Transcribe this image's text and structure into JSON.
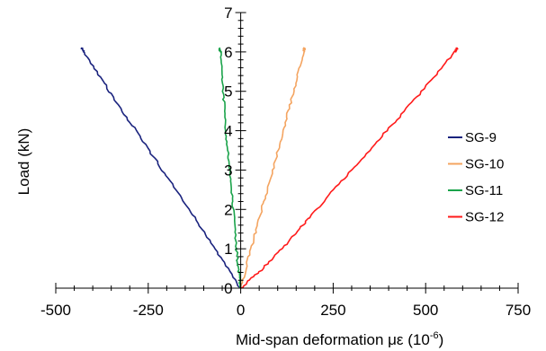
{
  "chart_data": {
    "type": "line",
    "title": "",
    "xlabel": "Mid-span deformation με (10",
    "xlabel_exponent": "-6",
    "xlabel_close": ")",
    "ylabel": "Load (kN)",
    "xlim": [
      -500,
      750
    ],
    "ylim": [
      0,
      7
    ],
    "x_ticks": [
      -500,
      -250,
      0,
      250,
      500,
      750
    ],
    "x_tick_labels": [
      "-500",
      "-250",
      "0",
      "250",
      "500",
      "750"
    ],
    "y_ticks": [
      0,
      1,
      2,
      3,
      4,
      5,
      6,
      7
    ],
    "y_tick_labels": [
      "0",
      "1",
      "2",
      "3",
      "4",
      "5",
      "6",
      "7"
    ],
    "grid": false,
    "legend_position": "right",
    "series": [
      {
        "name": "SG-9",
        "color": "#1a237e",
        "points": [
          [
            0,
            0
          ],
          [
            -70,
            1.0
          ],
          [
            -140,
            2.0
          ],
          [
            -212,
            3.0
          ],
          [
            -283,
            4.0
          ],
          [
            -355,
            5.0
          ],
          [
            -425,
            6.0
          ],
          [
            -430,
            6.1
          ]
        ]
      },
      {
        "name": "SG-10",
        "color": "#f4a460",
        "points": [
          [
            0,
            0
          ],
          [
            28,
            1.0
          ],
          [
            57,
            2.0
          ],
          [
            86,
            3.0
          ],
          [
            115,
            4.0
          ],
          [
            143,
            5.0
          ],
          [
            170,
            6.0
          ],
          [
            172,
            6.1
          ]
        ]
      },
      {
        "name": "SG-11",
        "color": "#1aa34a",
        "points": [
          [
            0,
            0
          ],
          [
            -6,
            0.5
          ],
          [
            -12,
            1.0
          ],
          [
            -20,
            2.0
          ],
          [
            -30,
            3.0
          ],
          [
            -40,
            4.0
          ],
          [
            -48,
            5.0
          ],
          [
            -55,
            6.0
          ],
          [
            -57,
            6.1
          ]
        ]
      },
      {
        "name": "SG-12",
        "color": "#ff1a1a",
        "points": [
          [
            0,
            0
          ],
          [
            60,
            0.5
          ],
          [
            140,
            1.3
          ],
          [
            205,
            2.0
          ],
          [
            300,
            3.0
          ],
          [
            395,
            4.0
          ],
          [
            490,
            5.0
          ],
          [
            580,
            6.0
          ],
          [
            585,
            6.1
          ]
        ]
      }
    ]
  }
}
